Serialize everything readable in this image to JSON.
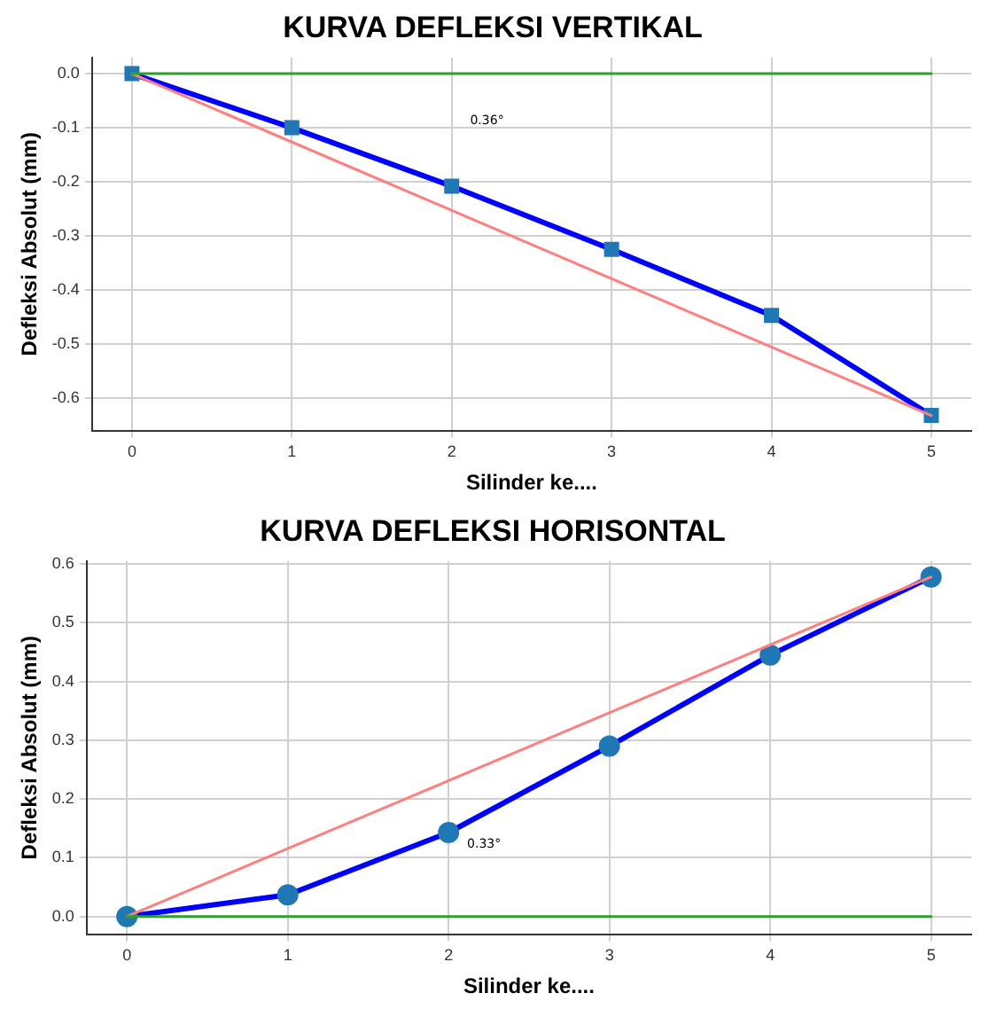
{
  "chart_data": [
    {
      "type": "line",
      "title": "KURVA DEFLEKSI VERTIKAL",
      "xlabel": "Silinder ke....",
      "ylabel": "Defleksi Absolut (mm)",
      "x": [
        0,
        1,
        2,
        3,
        4,
        5
      ],
      "series": [
        {
          "type": "line",
          "color": "#2ca02c",
          "values": [
            0,
            0,
            0,
            0,
            0,
            0
          ],
          "marker": "none"
        },
        {
          "type": "line",
          "color": "#ff7f7f",
          "values": [
            0,
            null,
            null,
            null,
            null,
            -0.632
          ],
          "marker": "none"
        },
        {
          "type": "scatter",
          "color": "#1f77b4",
          "values": [
            0,
            -0.1,
            -0.208,
            -0.325,
            -0.447,
            -0.632
          ],
          "marker": "square"
        },
        {
          "type": "line",
          "color": "#0000ff",
          "values": [
            0,
            -0.1,
            -0.208,
            -0.325,
            -0.447,
            -0.632
          ],
          "marker": "none"
        }
      ],
      "annotations": [
        "0.36°"
      ],
      "xlim": [
        -0.25,
        5.25
      ],
      "xticks": [
        0,
        1,
        2,
        3,
        4,
        5
      ],
      "ylim": [
        -0.66,
        0.03
      ],
      "yticks": [
        {
          "value": 0,
          "label": "0.0"
        },
        -0.1,
        -0.2,
        -0.3,
        -0.4,
        -0.5,
        -0.6
      ],
      "grid": true,
      "legend": false
    },
    {
      "type": "line",
      "title": "KURVA DEFLEKSI HORISONTAL",
      "xlabel": "Silinder ke....",
      "ylabel": "Defleksi Absolut (mm)",
      "x": [
        0,
        1,
        2,
        3,
        4,
        5
      ],
      "series": [
        {
          "type": "line",
          "color": "#2ca02c",
          "values": [
            0,
            0,
            0,
            0,
            0,
            0
          ],
          "marker": "none"
        },
        {
          "type": "line",
          "color": "#ff7f7f",
          "values": [
            0,
            null,
            null,
            null,
            null,
            0.578
          ],
          "marker": "none"
        },
        {
          "type": "scatter",
          "color": "#1f77b4",
          "values": [
            0,
            0.037,
            0.143,
            0.29,
            0.445,
            0.578
          ],
          "marker": "circle"
        },
        {
          "type": "line",
          "color": "#0000ff",
          "values": [
            0,
            0.037,
            0.143,
            0.29,
            0.445,
            0.578
          ],
          "marker": "none"
        }
      ],
      "annotations": [
        "0.33°"
      ],
      "xlim": [
        -0.25,
        5.25
      ],
      "xticks": [
        0,
        1,
        2,
        3,
        4,
        5
      ],
      "ylim": [
        -0.03,
        0.605
      ],
      "yticks": [
        {
          "value": 0,
          "label": "0.0"
        },
        0.1,
        0.2,
        0.3,
        0.4,
        0.5,
        0.6
      ],
      "grid": true,
      "legend": false
    }
  ]
}
